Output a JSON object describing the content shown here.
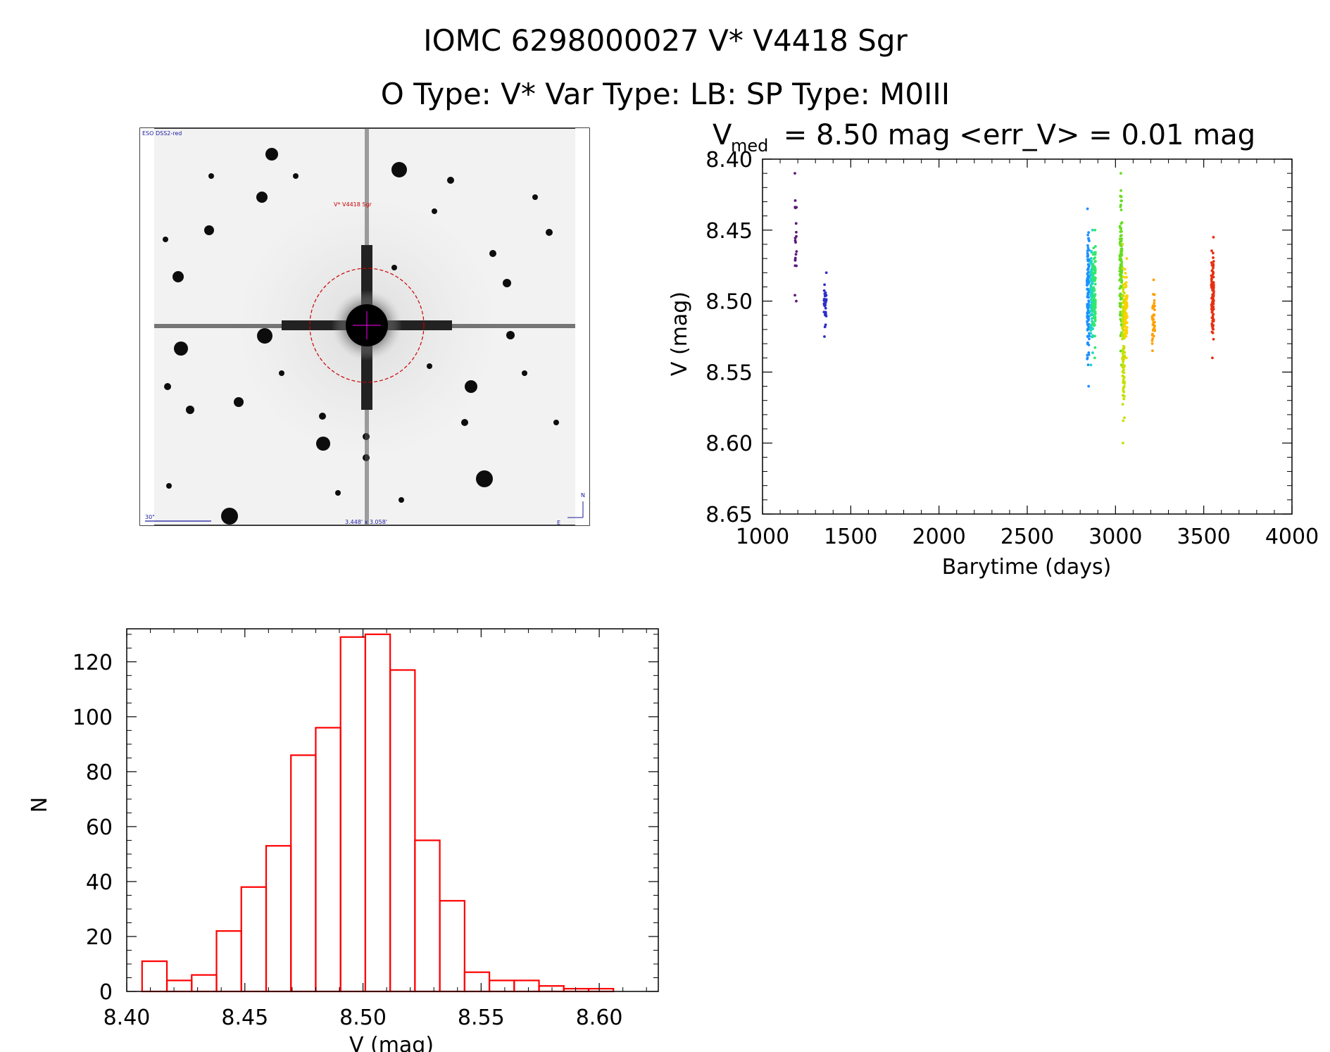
{
  "header": {
    "line1": "IOMC 6298000027    V* V4418 Sgr",
    "line2": "O Type: V*   Var Type: LB:   SP Type: M0III"
  },
  "finder": {
    "survey_label": "ESO DSS2-red",
    "target_label": "V* V4418 Sgr",
    "scale_label": "30\"",
    "fov_label": "3.448' x 3.058'",
    "north_label": "N",
    "east_label": "E"
  },
  "chart_data": [
    {
      "type": "scatter",
      "title_main": "V",
      "title_sub": "med",
      "title_rest": " = 8.50 mag <err_V> = 0.01 mag",
      "xlabel": "Barytime (days)",
      "ylabel": "V (mag)",
      "xlim": [
        1000,
        4000
      ],
      "ylim": [
        8.65,
        8.4
      ],
      "y_inverted": true,
      "xticks": [
        "1000",
        "1500",
        "2000",
        "2500",
        "3000",
        "3500",
        "4000"
      ],
      "yticks": [
        "8.40",
        "8.45",
        "8.50",
        "8.55",
        "8.60",
        "8.65"
      ],
      "groups": [
        {
          "x": 1190,
          "ymin": 8.41,
          "ymax": 8.5,
          "color": "#5a1a7a",
          "n": 20
        },
        {
          "x": 1355,
          "ymin": 8.48,
          "ymax": 8.525,
          "color": "#2e2ec8",
          "n": 30
        },
        {
          "x": 2845,
          "ymin": 8.435,
          "ymax": 8.56,
          "color": "#1e90ff",
          "n": 120
        },
        {
          "x": 2865,
          "ymin": 8.45,
          "ymax": 8.545,
          "color": "#1fd8c0",
          "n": 110
        },
        {
          "x": 2880,
          "ymin": 8.45,
          "ymax": 8.54,
          "color": "#33e86a",
          "n": 90
        },
        {
          "x": 3030,
          "ymin": 8.41,
          "ymax": 8.545,
          "color": "#66dd22",
          "n": 120
        },
        {
          "x": 3045,
          "ymin": 8.46,
          "ymax": 8.6,
          "color": "#c8e000",
          "n": 110
        },
        {
          "x": 3060,
          "ymin": 8.47,
          "ymax": 8.54,
          "color": "#ffd000",
          "n": 70
        },
        {
          "x": 3215,
          "ymin": 8.485,
          "ymax": 8.535,
          "color": "#ffa000",
          "n": 40
        },
        {
          "x": 3550,
          "ymin": 8.455,
          "ymax": 8.54,
          "color": "#e83010",
          "n": 100
        }
      ]
    },
    {
      "type": "bar",
      "xlabel": "V (mag)",
      "ylabel": "N",
      "xlim": [
        8.4,
        8.625
      ],
      "ylim": [
        0,
        132
      ],
      "xticks": [
        "8.40",
        "8.45",
        "8.50",
        "8.55",
        "8.60"
      ],
      "yticks": [
        "0",
        "20",
        "40",
        "60",
        "80",
        "100",
        "120"
      ],
      "bin_start": 8.4065,
      "bin_width": 0.0105,
      "values": [
        11,
        4,
        6,
        22,
        38,
        53,
        86,
        96,
        129,
        130,
        117,
        55,
        33,
        7,
        4,
        4,
        2,
        1,
        1
      ],
      "color": "#ff0000"
    }
  ]
}
